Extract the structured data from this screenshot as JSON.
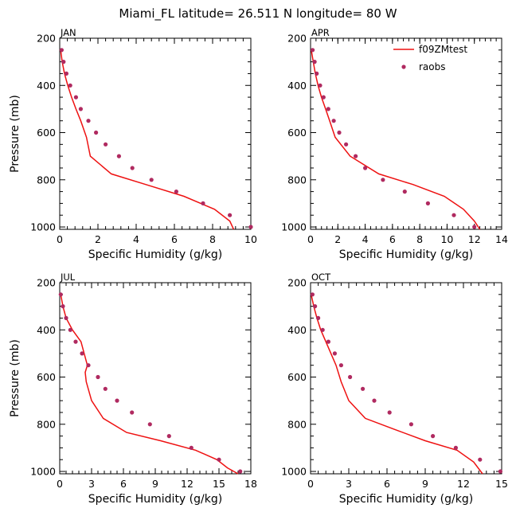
{
  "title": "Miami_FL  latitude= 26.511 N longitude= 80 W",
  "legend": {
    "model_label": "f09ZMtest",
    "obs_label": "raobs",
    "placement": "top-right of APR panel"
  },
  "colors": {
    "model_line": "#ee1111",
    "obs_marker": "#b02a60",
    "axes": "#000000"
  },
  "chart_data": [
    {
      "type": "line",
      "panel_label": "JAN",
      "xlabel": "Specific Humidity (g/kg)",
      "ylabel": "Pressure (mb)",
      "xlim": [
        0,
        10
      ],
      "ylim": [
        1010,
        200
      ],
      "y_inverted": true,
      "xticks": [
        0,
        2,
        4,
        6,
        8,
        10
      ],
      "yticks": [
        200,
        400,
        600,
        800,
        1000
      ],
      "series": [
        {
          "name": "f09ZMtest",
          "kind": "line",
          "x": [
            0.05,
            0.13,
            0.25,
            0.42,
            0.62,
            0.85,
            1.1,
            1.4,
            1.6,
            2.7,
            4.5,
            6.5,
            8.1,
            8.9,
            9.1
          ],
          "y": [
            250,
            300,
            350,
            400,
            450,
            500,
            550,
            620,
            700,
            775,
            820,
            870,
            925,
            975,
            1010
          ]
        },
        {
          "name": "raobs",
          "kind": "scatter",
          "x": [
            0.1,
            0.2,
            0.35,
            0.55,
            0.85,
            1.1,
            1.5,
            1.9,
            2.4,
            3.1,
            3.8,
            4.8,
            6.1,
            7.5,
            8.9,
            10.0
          ],
          "y": [
            250,
            300,
            350,
            400,
            450,
            500,
            550,
            600,
            650,
            700,
            750,
            800,
            850,
            900,
            950,
            1000
          ]
        }
      ]
    },
    {
      "type": "line",
      "panel_label": "APR",
      "xlabel": "Specific Humidity (g/kg)",
      "ylabel": "",
      "xlim": [
        0,
        14
      ],
      "ylim": [
        1010,
        200
      ],
      "y_inverted": true,
      "xticks": [
        0,
        2,
        4,
        6,
        8,
        10,
        12,
        14
      ],
      "yticks": [
        200,
        400,
        600,
        800,
        1000
      ],
      "series": [
        {
          "name": "f09ZMtest",
          "kind": "line",
          "x": [
            0.05,
            0.2,
            0.35,
            0.55,
            0.8,
            1.1,
            1.4,
            1.8,
            2.9,
            5.0,
            7.5,
            9.8,
            11.2,
            12.0,
            12.4
          ],
          "y": [
            250,
            300,
            350,
            400,
            450,
            500,
            550,
            620,
            700,
            775,
            820,
            870,
            925,
            975,
            1010
          ]
        },
        {
          "name": "raobs",
          "kind": "scatter",
          "x": [
            0.15,
            0.3,
            0.45,
            0.7,
            0.95,
            1.3,
            1.7,
            2.1,
            2.6,
            3.3,
            4.0,
            5.3,
            6.9,
            8.6,
            10.5,
            12.0
          ],
          "y": [
            250,
            300,
            350,
            400,
            450,
            500,
            550,
            600,
            650,
            700,
            750,
            800,
            850,
            900,
            950,
            1000
          ]
        }
      ]
    },
    {
      "type": "line",
      "panel_label": "JUL",
      "xlabel": "Specific Humidity (g/kg)",
      "ylabel": "Pressure (mb)",
      "xlim": [
        0,
        18
      ],
      "ylim": [
        1010,
        200
      ],
      "y_inverted": true,
      "xticks": [
        0,
        3,
        6,
        9,
        12,
        15,
        18
      ],
      "yticks": [
        200,
        400,
        600,
        800,
        1000
      ],
      "series": [
        {
          "name": "f09ZMtest",
          "kind": "line",
          "x": [
            0.1,
            0.3,
            0.6,
            1.2,
            2.0,
            2.6,
            2.4,
            2.5,
            3.0,
            4.1,
            6.3,
            9.5,
            12.8,
            14.8,
            15.8,
            16.8
          ],
          "y": [
            250,
            300,
            350,
            400,
            450,
            550,
            580,
            620,
            700,
            775,
            835,
            870,
            910,
            950,
            985,
            1010
          ]
        },
        {
          "name": "raobs",
          "kind": "scatter",
          "x": [
            0.1,
            0.3,
            0.6,
            1.0,
            1.5,
            2.1,
            2.7,
            3.6,
            4.3,
            5.4,
            6.8,
            8.5,
            10.3,
            12.4,
            15.0,
            17.0
          ],
          "y": [
            250,
            300,
            350,
            400,
            450,
            500,
            550,
            600,
            650,
            700,
            750,
            800,
            850,
            900,
            950,
            1000
          ]
        }
      ]
    },
    {
      "type": "line",
      "panel_label": "OCT",
      "xlabel": "Specific Humidity (g/kg)",
      "ylabel": "",
      "xlim": [
        0,
        15
      ],
      "ylim": [
        1010,
        200
      ],
      "y_inverted": true,
      "xticks": [
        0,
        3,
        6,
        9,
        12,
        15
      ],
      "yticks": [
        200,
        400,
        600,
        800,
        1000
      ],
      "series": [
        {
          "name": "f09ZMtest",
          "kind": "line",
          "x": [
            0.05,
            0.25,
            0.5,
            0.8,
            1.2,
            1.6,
            2.0,
            2.4,
            3.0,
            4.3,
            6.5,
            9.0,
            11.5,
            12.8,
            13.5
          ],
          "y": [
            250,
            300,
            350,
            400,
            450,
            500,
            550,
            620,
            700,
            775,
            820,
            870,
            910,
            960,
            1010
          ]
        },
        {
          "name": "raobs",
          "kind": "scatter",
          "x": [
            0.15,
            0.35,
            0.6,
            0.95,
            1.4,
            1.9,
            2.4,
            3.1,
            4.1,
            5.0,
            6.2,
            7.9,
            9.6,
            11.4,
            13.3,
            14.9
          ],
          "y": [
            250,
            300,
            350,
            400,
            450,
            500,
            550,
            600,
            650,
            700,
            750,
            800,
            850,
            900,
            950,
            1000
          ]
        }
      ]
    }
  ]
}
